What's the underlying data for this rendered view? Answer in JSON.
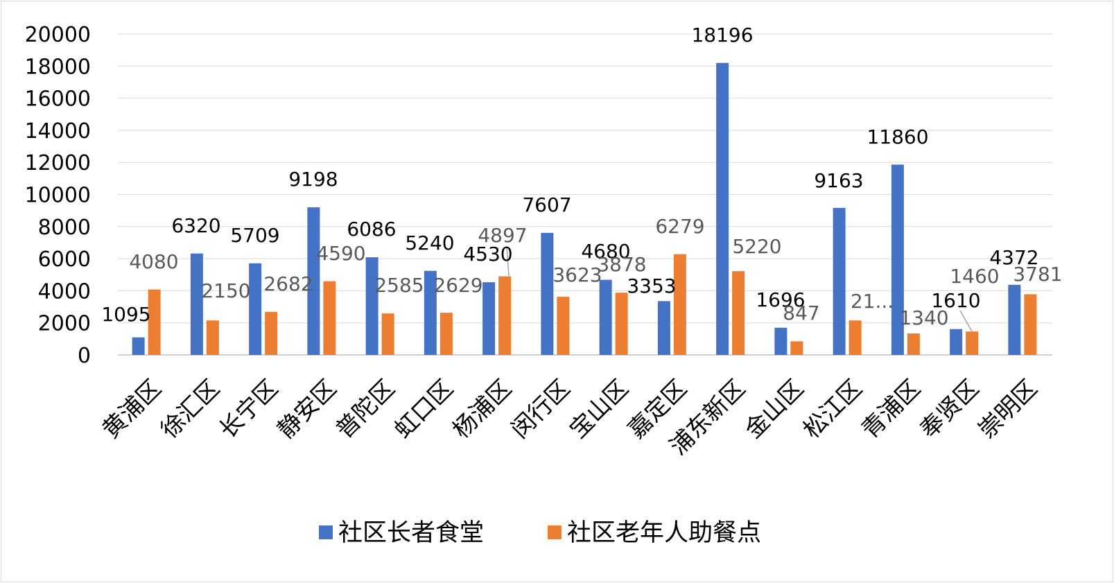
{
  "chart_data": {
    "type": "bar",
    "title": "",
    "xlabel": "",
    "ylabel": "",
    "ylim": [
      0,
      20000
    ],
    "yticks": [
      0,
      2000,
      4000,
      6000,
      8000,
      10000,
      12000,
      14000,
      16000,
      18000,
      20000
    ],
    "grid": true,
    "legend_position": "bottom",
    "categories": [
      "黄浦区",
      "徐汇区",
      "长宁区",
      "静安区",
      "普陀区",
      "虹口区",
      "杨浦区",
      "闵行区",
      "宝山区",
      "嘉定区",
      "浦东新区",
      "金山区",
      "松江区",
      "青浦区",
      "奉贤区",
      "崇明区"
    ],
    "series": [
      {
        "name": "社区长者食堂",
        "color": "#4472c4",
        "values": [
          1095,
          6320,
          5709,
          9198,
          6086,
          5240,
          4530,
          7607,
          4680,
          3353,
          18196,
          1696,
          9163,
          11860,
          1610,
          4372
        ],
        "labels": [
          "1095",
          "6320",
          "5709",
          "9198",
          "6086",
          "5240",
          "4530",
          "7607",
          "4680",
          "3353",
          "18196",
          "1696",
          "9163",
          "11860",
          "1610",
          "4372"
        ]
      },
      {
        "name": "社区老年人助餐点",
        "color": "#ed7d31",
        "values": [
          4080,
          2150,
          2682,
          4590,
          2585,
          2629,
          4897,
          3623,
          3878,
          6279,
          5220,
          847,
          2150,
          1340,
          1460,
          3781
        ],
        "labels": [
          "4080",
          "2150",
          "2682",
          "4590",
          "2585",
          "2629",
          "4897",
          "3623",
          "3878",
          "6279",
          "5220",
          "847",
          "21...",
          "1340",
          "1460",
          "3781"
        ]
      }
    ]
  }
}
